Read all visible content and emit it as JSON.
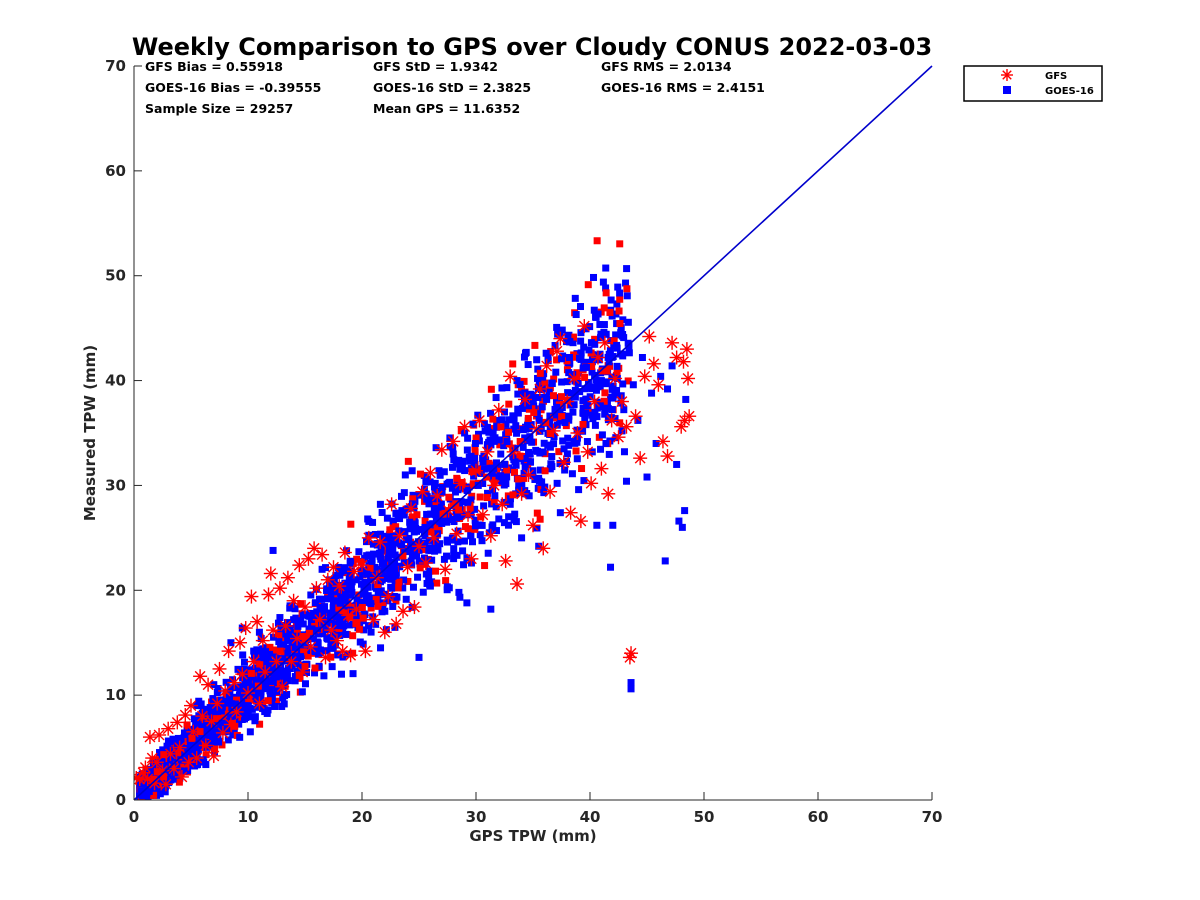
{
  "colors": {
    "gfs": "#ff0000",
    "goes": "#0000ff",
    "line": "#0000cc",
    "axis": "#262626"
  },
  "stats": {
    "gfs_bias": "GFS Bias = 0.55918",
    "gfs_std": "GFS StD = 1.9342",
    "gfs_rms": "GFS RMS = 2.0134",
    "goes_bias": "GOES-16 Bias = -0.39555",
    "goes_std": "GOES-16 StD = 2.3825",
    "goes_rms": "GOES-16 RMS = 2.4151",
    "sample_size": "Sample Size = 29257",
    "mean_gps": "Mean GPS = 11.6352"
  },
  "chart_data": {
    "type": "scatter",
    "title": "Weekly Comparison to GPS over Cloudy CONUS 2022-03-03",
    "xlabel": "GPS TPW (mm)",
    "ylabel": "Measured TPW (mm)",
    "xlim": [
      0,
      70
    ],
    "ylim": [
      0,
      70
    ],
    "xticks": [
      "0",
      "10",
      "20",
      "30",
      "40",
      "50",
      "60",
      "70"
    ],
    "yticks": [
      "0",
      "10",
      "20",
      "30",
      "40",
      "50",
      "60",
      "70"
    ],
    "legend_position": "outside-top-right",
    "reference_line": {
      "x": [
        0,
        70
      ],
      "y": [
        0,
        70
      ]
    },
    "series": [
      {
        "name": "GFS",
        "marker": "asterisk",
        "color": "#ff0000",
        "points": [
          [
            0.2,
            2.1
          ],
          [
            0.5,
            2.0
          ],
          [
            0.8,
            2.6
          ],
          [
            1.0,
            3.1
          ],
          [
            1.2,
            2.0
          ],
          [
            1.4,
            6.0
          ],
          [
            1.6,
            4.0
          ],
          [
            1.8,
            1.6
          ],
          [
            2.0,
            3.6
          ],
          [
            2.2,
            6.2
          ],
          [
            2.5,
            2.8
          ],
          [
            2.8,
            1.5
          ],
          [
            3.0,
            6.8
          ],
          [
            3.2,
            4.4
          ],
          [
            3.5,
            3.0
          ],
          [
            3.8,
            7.4
          ],
          [
            4.0,
            5.0
          ],
          [
            4.2,
            2.2
          ],
          [
            4.5,
            8.1
          ],
          [
            4.8,
            3.6
          ],
          [
            5.0,
            9.0
          ],
          [
            5.2,
            6.5
          ],
          [
            5.5,
            4.0
          ],
          [
            5.8,
            11.8
          ],
          [
            6.0,
            8.0
          ],
          [
            6.3,
            5.2
          ],
          [
            6.5,
            11.0
          ],
          [
            6.8,
            7.5
          ],
          [
            7.0,
            4.2
          ],
          [
            7.3,
            9.2
          ],
          [
            7.5,
            12.5
          ],
          [
            7.8,
            6.4
          ],
          [
            8.0,
            10.4
          ],
          [
            8.3,
            14.2
          ],
          [
            8.5,
            7.2
          ],
          [
            8.8,
            11.2
          ],
          [
            9.0,
            8.4
          ],
          [
            9.3,
            15.0
          ],
          [
            9.5,
            12.0
          ],
          [
            9.8,
            16.4
          ],
          [
            10.0,
            10.2
          ],
          [
            10.3,
            19.4
          ],
          [
            10.5,
            13.2
          ],
          [
            10.8,
            17.0
          ],
          [
            11.0,
            9.2
          ],
          [
            11.3,
            15.2
          ],
          [
            11.5,
            12.2
          ],
          [
            11.8,
            19.6
          ],
          [
            12.0,
            21.6
          ],
          [
            12.2,
            16.2
          ],
          [
            12.5,
            13.2
          ],
          [
            12.8,
            20.2
          ],
          [
            13.0,
            10.8
          ],
          [
            13.3,
            16.6
          ],
          [
            13.5,
            21.2
          ],
          [
            13.8,
            13.2
          ],
          [
            14.0,
            19.0
          ],
          [
            14.3,
            15.4
          ],
          [
            14.5,
            22.4
          ],
          [
            14.8,
            12.2
          ],
          [
            15.0,
            18.4
          ],
          [
            15.3,
            23.0
          ],
          [
            15.5,
            14.6
          ],
          [
            15.8,
            24.0
          ],
          [
            16.0,
            20.2
          ],
          [
            16.3,
            17.2
          ],
          [
            16.5,
            23.4
          ],
          [
            16.8,
            13.6
          ],
          [
            17.0,
            21.0
          ],
          [
            17.3,
            16.2
          ],
          [
            17.5,
            22.2
          ],
          [
            17.8,
            15.2
          ],
          [
            18.0,
            20.4
          ],
          [
            18.3,
            14.2
          ],
          [
            18.5,
            23.6
          ],
          [
            18.8,
            17.6
          ],
          [
            19.0,
            13.8
          ],
          [
            19.3,
            21.8
          ],
          [
            19.5,
            18.2
          ],
          [
            20.0,
            22.4
          ],
          [
            20.3,
            14.2
          ],
          [
            20.6,
            25.0
          ],
          [
            21.0,
            17.2
          ],
          [
            21.3,
            21.2
          ],
          [
            21.6,
            24.6
          ],
          [
            22.0,
            16.0
          ],
          [
            22.3,
            19.4
          ],
          [
            22.6,
            28.2
          ],
          [
            23.0,
            16.8
          ],
          [
            23.3,
            25.2
          ],
          [
            23.6,
            18.0
          ],
          [
            24.0,
            22.2
          ],
          [
            24.3,
            27.8
          ],
          [
            24.6,
            18.4
          ],
          [
            25.0,
            24.2
          ],
          [
            25.3,
            29.4
          ],
          [
            25.6,
            22.6
          ],
          [
            26.0,
            31.2
          ],
          [
            26.3,
            25.0
          ],
          [
            26.6,
            29.0
          ],
          [
            27.0,
            33.4
          ],
          [
            27.3,
            22.0
          ],
          [
            27.6,
            27.6
          ],
          [
            28.0,
            34.2
          ],
          [
            28.3,
            25.4
          ],
          [
            28.6,
            30.2
          ],
          [
            29.0,
            35.6
          ],
          [
            29.3,
            27.2
          ],
          [
            29.6,
            23.0
          ],
          [
            30.0,
            31.4
          ],
          [
            30.3,
            36.2
          ],
          [
            30.6,
            27.2
          ],
          [
            31.0,
            33.2
          ],
          [
            31.3,
            25.2
          ],
          [
            31.6,
            30.0
          ],
          [
            32.0,
            37.2
          ],
          [
            32.3,
            28.2
          ],
          [
            32.6,
            22.8
          ],
          [
            33.0,
            40.4
          ],
          [
            33.3,
            33.2
          ],
          [
            33.6,
            20.6
          ],
          [
            34.0,
            29.2
          ],
          [
            34.3,
            38.2
          ],
          [
            34.6,
            31.0
          ],
          [
            35.0,
            26.2
          ],
          [
            35.3,
            35.4
          ],
          [
            35.6,
            39.2
          ],
          [
            35.9,
            24.0
          ],
          [
            36.2,
            41.4
          ],
          [
            36.5,
            29.4
          ],
          [
            36.8,
            35.2
          ],
          [
            37.1,
            42.8
          ],
          [
            37.4,
            44.0
          ],
          [
            37.7,
            32.2
          ],
          [
            38.0,
            38.0
          ],
          [
            38.3,
            27.4
          ],
          [
            38.6,
            40.2
          ],
          [
            38.9,
            35.0
          ],
          [
            39.2,
            26.6
          ],
          [
            39.5,
            45.2
          ],
          [
            39.8,
            33.2
          ],
          [
            40.1,
            30.2
          ],
          [
            40.4,
            38.0
          ],
          [
            40.7,
            42.2
          ],
          [
            41.0,
            31.6
          ],
          [
            41.3,
            43.6
          ],
          [
            41.6,
            29.2
          ],
          [
            41.9,
            36.2
          ],
          [
            42.2,
            40.2
          ],
          [
            42.5,
            34.6
          ],
          [
            42.8,
            38.0
          ],
          [
            43.2,
            35.6
          ],
          [
            43.5,
            13.6
          ],
          [
            43.6,
            14.0
          ],
          [
            44.0,
            36.6
          ],
          [
            44.4,
            32.6
          ],
          [
            44.8,
            40.4
          ],
          [
            45.2,
            44.2
          ],
          [
            45.6,
            41.6
          ],
          [
            46.0,
            39.6
          ],
          [
            46.4,
            34.2
          ],
          [
            46.8,
            32.8
          ],
          [
            47.2,
            43.6
          ],
          [
            47.6,
            42.2
          ],
          [
            48.0,
            35.6
          ],
          [
            48.3,
            36.2
          ],
          [
            48.5,
            43.0
          ],
          [
            48.6,
            40.2
          ],
          [
            48.7,
            36.6
          ],
          [
            48.2,
            41.8
          ]
        ]
      },
      {
        "name": "GOES-16",
        "marker": "square",
        "color": "#0000ff",
        "points": [
          [
            5.5,
            9.0
          ],
          [
            7.0,
            11.0
          ],
          [
            8.5,
            15.0
          ],
          [
            9.5,
            16.4
          ],
          [
            10.5,
            14.2
          ],
          [
            11.0,
            16.0
          ],
          [
            12.2,
            23.8
          ],
          [
            12.8,
            17.4
          ],
          [
            13.5,
            14.0
          ],
          [
            14.0,
            17.2
          ],
          [
            15.5,
            17.6
          ],
          [
            16.5,
            22.0
          ],
          [
            17.5,
            19.0
          ],
          [
            18.2,
            12.0
          ],
          [
            19.0,
            22.6
          ],
          [
            19.5,
            21.0
          ],
          [
            20.5,
            26.8
          ],
          [
            21.0,
            24.4
          ],
          [
            22.0,
            18.0
          ],
          [
            22.6,
            20.2
          ],
          [
            22.8,
            22.4
          ],
          [
            23.5,
            27.6
          ],
          [
            23.8,
            31.0
          ],
          [
            24.4,
            31.4
          ],
          [
            25.0,
            13.6
          ],
          [
            25.5,
            25.8
          ],
          [
            26.0,
            20.4
          ],
          [
            26.5,
            33.6
          ],
          [
            27.0,
            29.8
          ],
          [
            27.5,
            24.6
          ],
          [
            28.0,
            33.0
          ],
          [
            28.5,
            19.8
          ],
          [
            29.0,
            35.0
          ],
          [
            29.2,
            18.8
          ],
          [
            29.6,
            22.6
          ],
          [
            30.2,
            30.0
          ],
          [
            30.8,
            35.2
          ],
          [
            31.3,
            18.2
          ],
          [
            31.6,
            34.2
          ],
          [
            32.0,
            26.8
          ],
          [
            32.5,
            37.0
          ],
          [
            33.0,
            28.2
          ],
          [
            33.6,
            40.0
          ],
          [
            34.0,
            25.0
          ],
          [
            34.3,
            29.2
          ],
          [
            34.6,
            37.6
          ],
          [
            35.0,
            31.4
          ],
          [
            35.5,
            24.2
          ],
          [
            35.8,
            39.2
          ],
          [
            36.2,
            38.2
          ],
          [
            36.6,
            32.0
          ],
          [
            37.0,
            40.8
          ],
          [
            37.4,
            27.4
          ],
          [
            37.8,
            36.0
          ],
          [
            38.2,
            42.2
          ],
          [
            38.6,
            34.2
          ],
          [
            39.0,
            29.6
          ],
          [
            39.4,
            41.2
          ],
          [
            39.8,
            37.6
          ],
          [
            40.2,
            33.2
          ],
          [
            40.6,
            26.2
          ],
          [
            41.0,
            40.0
          ],
          [
            41.4,
            34.0
          ],
          [
            41.8,
            22.2
          ],
          [
            42.0,
            26.2
          ],
          [
            42.4,
            40.2
          ],
          [
            42.8,
            35.2
          ],
          [
            43.2,
            30.4
          ],
          [
            43.6,
            10.6
          ],
          [
            43.6,
            11.2
          ],
          [
            43.8,
            39.6
          ],
          [
            44.2,
            36.2
          ],
          [
            44.6,
            42.2
          ],
          [
            45.0,
            30.8
          ],
          [
            45.4,
            38.8
          ],
          [
            45.8,
            34.0
          ],
          [
            46.2,
            40.4
          ],
          [
            46.6,
            22.8
          ],
          [
            46.8,
            39.2
          ],
          [
            47.2,
            41.4
          ],
          [
            47.6,
            32.0
          ],
          [
            47.8,
            26.6
          ],
          [
            48.1,
            26.0
          ],
          [
            48.3,
            27.6
          ],
          [
            48.4,
            38.2
          ]
        ]
      }
    ]
  }
}
